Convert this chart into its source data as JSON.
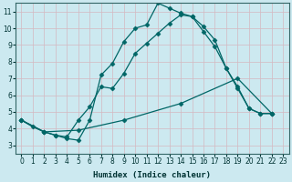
{
  "xlabel": "Humidex (Indice chaleur)",
  "xlim": [
    -0.5,
    23.5
  ],
  "ylim": [
    2.5,
    11.5
  ],
  "xticks": [
    0,
    1,
    2,
    3,
    4,
    5,
    6,
    7,
    8,
    9,
    10,
    11,
    12,
    13,
    14,
    15,
    16,
    17,
    18,
    19,
    20,
    21,
    22,
    23
  ],
  "yticks": [
    3,
    4,
    5,
    6,
    7,
    8,
    9,
    10,
    11
  ],
  "bg_color": "#cce9f0",
  "grid_color": "#b8d8e0",
  "line_color": "#006666",
  "curve1_x": [
    0,
    1,
    2,
    3,
    4,
    5,
    6,
    7,
    8,
    9,
    10,
    11,
    12,
    13,
    14,
    15,
    16,
    17,
    18,
    19,
    20,
    21,
    22
  ],
  "curve1_y": [
    4.5,
    4.1,
    3.8,
    3.6,
    3.4,
    3.3,
    4.5,
    7.2,
    7.9,
    9.2,
    10.0,
    10.2,
    11.5,
    11.2,
    10.9,
    10.7,
    9.8,
    8.9,
    7.6,
    6.5,
    5.2,
    4.9,
    4.9
  ],
  "curve2_x": [
    0,
    2,
    3,
    4,
    5,
    6,
    7,
    8,
    9,
    10,
    11,
    12,
    13,
    14,
    15,
    16,
    17,
    18,
    19,
    20,
    21,
    22
  ],
  "curve2_y": [
    4.5,
    3.8,
    3.6,
    3.5,
    4.5,
    5.3,
    6.5,
    6.4,
    7.3,
    8.5,
    9.1,
    9.7,
    10.3,
    10.8,
    10.7,
    10.1,
    9.3,
    7.6,
    6.4,
    5.2,
    4.9,
    4.9
  ],
  "curve3_x": [
    0,
    2,
    5,
    9,
    14,
    19,
    22
  ],
  "curve3_y": [
    4.5,
    3.8,
    3.9,
    4.5,
    5.5,
    7.0,
    4.9
  ],
  "marker": "D",
  "markersize": 2.5,
  "linewidth": 0.9
}
